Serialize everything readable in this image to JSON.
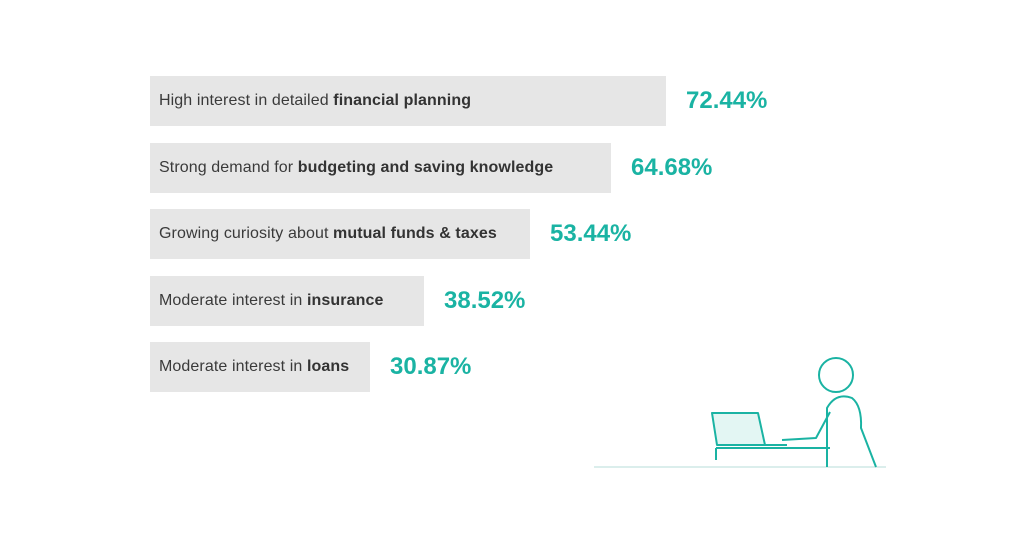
{
  "chart_data": {
    "type": "bar",
    "orientation": "horizontal",
    "categories": [
      {
        "plain": "High interest in detailed ",
        "bold": "financial planning"
      },
      {
        "plain": "Strong demand for ",
        "bold": "budgeting and saving knowledge"
      },
      {
        "plain": "Growing curiosity about ",
        "bold": "mutual funds & taxes"
      },
      {
        "plain": "Moderate interest in ",
        "bold": "insurance"
      },
      {
        "plain": "Moderate interest in ",
        "bold": "loans"
      }
    ],
    "values": [
      72.44,
      64.68,
      53.44,
      38.52,
      30.87
    ],
    "value_labels": [
      "72.44%",
      "64.68%",
      "53.44%",
      "38.52%",
      "30.87%"
    ],
    "unit": "%",
    "xlim": [
      0,
      100
    ],
    "grid": false
  },
  "colors": {
    "bar": "#e6e6e6",
    "value_text": "#1ab3a3",
    "illustration_stroke": "#1ab3a3",
    "illustration_fill": "#e3f6f3"
  },
  "illustration": {
    "icon": "person-at-laptop-icon"
  }
}
